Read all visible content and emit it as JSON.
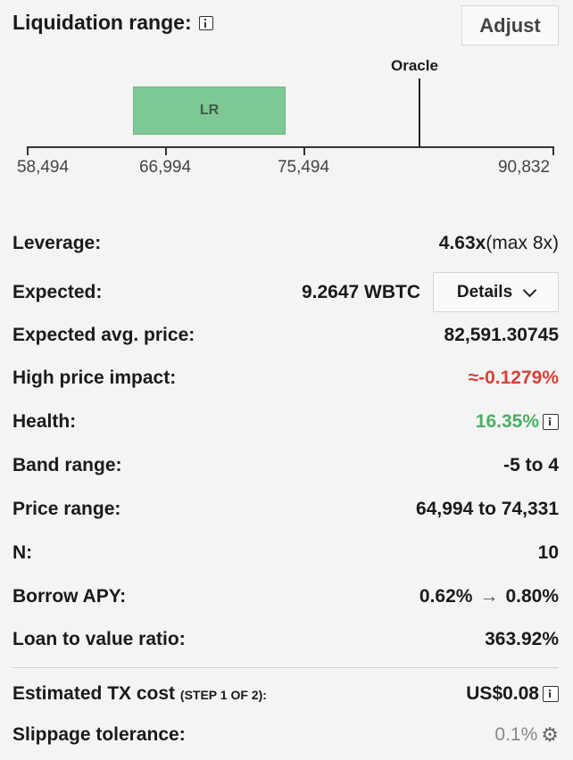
{
  "header": {
    "title": "Liquidation range:",
    "adjust_label": "Adjust"
  },
  "range_chart": {
    "oracle_label": "Oracle",
    "lr_label": "LR",
    "ticks": [
      "58,494",
      "66,994",
      "75,494",
      "90,832"
    ]
  },
  "leverage": {
    "label": "Leverage:",
    "value": "4.63x",
    "max": "(max 8x)"
  },
  "expected": {
    "label": "Expected:",
    "value": "9.2647 WBTC",
    "details_label": "Details"
  },
  "avg_price": {
    "label": "Expected avg. price:",
    "value": "82,591.30745"
  },
  "price_impact": {
    "label": "High price impact:",
    "value": "≈-0.1279%"
  },
  "health": {
    "label": "Health:",
    "value": "16.35%"
  },
  "band_range": {
    "label": "Band range:",
    "value": "-5 to 4"
  },
  "price_range": {
    "label": "Price range:",
    "value": "64,994 to 74,331"
  },
  "n": {
    "label": "N:",
    "value": "10"
  },
  "borrow_apy": {
    "label": "Borrow APY:",
    "from": "0.62%",
    "arrow": "→",
    "to": "0.80%"
  },
  "ltv": {
    "label": "Loan to value ratio:",
    "value": "363.92%"
  },
  "tx_cost": {
    "label": "Estimated TX cost",
    "step": "(STEP 1 OF 2):",
    "value": "US$0.08"
  },
  "slippage": {
    "label": "Slippage tolerance:",
    "value": "0.1%"
  },
  "colors": {
    "lr_fill": "#7ec893",
    "negative": "#d9403a",
    "positive": "#4caf66"
  },
  "icons": {
    "info": "info-icon",
    "settings": "gear-icon",
    "chevron": "chevron-down-icon"
  }
}
